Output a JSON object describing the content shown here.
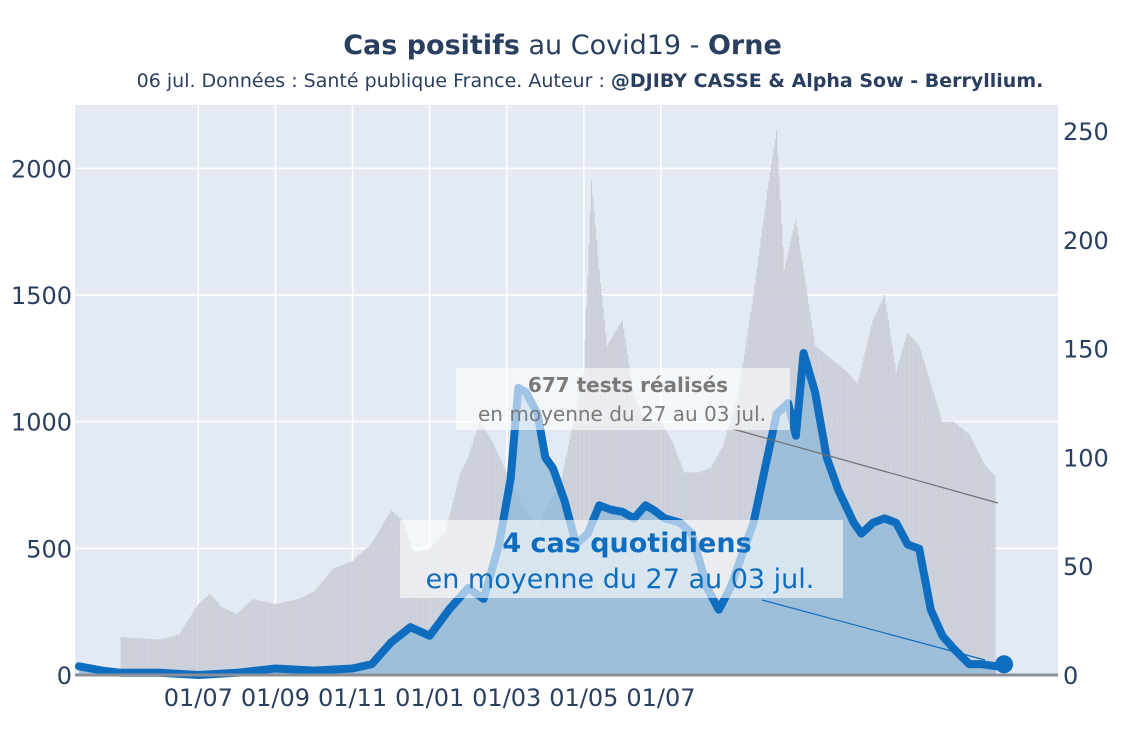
{
  "title": {
    "bold_start": "Cas positifs",
    "normal_middle": " au Covid19 - ",
    "bold_end": "Orne"
  },
  "subtitle": {
    "normal": "06 jul. Données : Santé publique France. Auteur : ",
    "bold": "@DJIBY CASSE & Alpha Sow - Berryllium."
  },
  "colors": {
    "cases": "#0f6dbf",
    "cases_fill": "#8db8da",
    "tests": "#c9ced8",
    "plot_bg": "#e4eaf3",
    "grid": "#ffffff"
  },
  "annotations": {
    "tests": {
      "line1": "677 tests réalisés",
      "line2": "en moyenne du 27 au 03 jul."
    },
    "cases": {
      "line1": "4 cas quotidiens",
      "line2": "en moyenne du 27 au 03 jul."
    }
  },
  "chart_data": {
    "type": "line",
    "title": "Cas positifs au Covid19 - Orne",
    "x_ticks": [
      "01/07",
      "01/09",
      "01/11",
      "01/01",
      "01/03",
      "01/05",
      "01/07"
    ],
    "y_left": {
      "ticks": [
        "0",
        "500",
        "1000",
        "1500",
        "2000"
      ],
      "range": [
        0,
        2250
      ],
      "series_name": "tests"
    },
    "y_right": {
      "ticks": [
        "0",
        "50",
        "100",
        "150",
        "200",
        "250"
      ],
      "range": [
        0,
        262
      ],
      "series_name": "cas"
    },
    "x_months_range": [
      -1.2,
      24.3
    ],
    "grid": true,
    "tests_points": [
      [
        0,
        150
      ],
      [
        1,
        140
      ],
      [
        1.5,
        160
      ],
      [
        2,
        280
      ],
      [
        2.3,
        320
      ],
      [
        2.6,
        270
      ],
      [
        3,
        240
      ],
      [
        3.4,
        300
      ],
      [
        4,
        280
      ],
      [
        4.6,
        300
      ],
      [
        5,
        330
      ],
      [
        5.5,
        420
      ],
      [
        6,
        450
      ],
      [
        6.5,
        520
      ],
      [
        7,
        650
      ],
      [
        7.3,
        610
      ],
      [
        7.6,
        480
      ],
      [
        8,
        500
      ],
      [
        8.4,
        560
      ],
      [
        8.8,
        800
      ],
      [
        9,
        860
      ],
      [
        9.3,
        1000
      ],
      [
        9.6,
        930
      ],
      [
        10,
        800
      ],
      [
        10.5,
        640
      ],
      [
        10.8,
        580
      ],
      [
        11,
        650
      ],
      [
        11.4,
        760
      ],
      [
        11.8,
        1050
      ],
      [
        12,
        1200
      ],
      [
        12.2,
        1950
      ],
      [
        12.4,
        1600
      ],
      [
        12.6,
        1300
      ],
      [
        13,
        1400
      ],
      [
        13.3,
        1100
      ],
      [
        13.6,
        1000
      ],
      [
        14,
        1000
      ],
      [
        14.3,
        920
      ],
      [
        14.6,
        800
      ],
      [
        15,
        800
      ],
      [
        15.3,
        820
      ],
      [
        15.6,
        900
      ],
      [
        16,
        1100
      ],
      [
        16.4,
        1500
      ],
      [
        16.8,
        1950
      ],
      [
        17,
        2150
      ],
      [
        17.2,
        1600
      ],
      [
        17.5,
        1800
      ],
      [
        17.8,
        1500
      ],
      [
        18,
        1300
      ],
      [
        18.4,
        1250
      ],
      [
        18.8,
        1200
      ],
      [
        19.1,
        1150
      ],
      [
        19.5,
        1400
      ],
      [
        19.8,
        1500
      ],
      [
        20.1,
        1200
      ],
      [
        20.4,
        1350
      ],
      [
        20.7,
        1300
      ],
      [
        21,
        1150
      ],
      [
        21.3,
        1000
      ],
      [
        21.6,
        1000
      ],
      [
        22,
        950
      ],
      [
        22.4,
        830
      ],
      [
        22.7,
        780
      ]
    ],
    "cases_points": [
      [
        -1.1,
        4
      ],
      [
        -0.5,
        2
      ],
      [
        0,
        1
      ],
      [
        1,
        1
      ],
      [
        2,
        0
      ],
      [
        3,
        1
      ],
      [
        4,
        3
      ],
      [
        5,
        2
      ],
      [
        6,
        3
      ],
      [
        6.5,
        5
      ],
      [
        7,
        15
      ],
      [
        7.5,
        22
      ],
      [
        8,
        18
      ],
      [
        8.5,
        30
      ],
      [
        9,
        40
      ],
      [
        9.4,
        35
      ],
      [
        9.8,
        60
      ],
      [
        10.1,
        90
      ],
      [
        10.3,
        132
      ],
      [
        10.5,
        130
      ],
      [
        10.8,
        120
      ],
      [
        11,
        100
      ],
      [
        11.2,
        95
      ],
      [
        11.5,
        80
      ],
      [
        11.8,
        60
      ],
      [
        12.1,
        65
      ],
      [
        12.4,
        78
      ],
      [
        12.7,
        76
      ],
      [
        13,
        75
      ],
      [
        13.3,
        72
      ],
      [
        13.6,
        78
      ],
      [
        13.8,
        76
      ],
      [
        14.1,
        72
      ],
      [
        14.5,
        70
      ],
      [
        14.8,
        65
      ],
      [
        15.2,
        40
      ],
      [
        15.5,
        30
      ],
      [
        15.8,
        40
      ],
      [
        16.1,
        55
      ],
      [
        16.4,
        70
      ],
      [
        16.7,
        95
      ],
      [
        17,
        120
      ],
      [
        17.3,
        125
      ],
      [
        17.5,
        110
      ],
      [
        17.7,
        148
      ],
      [
        18,
        130
      ],
      [
        18.3,
        100
      ],
      [
        18.6,
        85
      ],
      [
        19,
        70
      ],
      [
        19.2,
        65
      ],
      [
        19.5,
        70
      ],
      [
        19.8,
        72
      ],
      [
        20.1,
        70
      ],
      [
        20.4,
        60
      ],
      [
        20.7,
        58
      ],
      [
        21,
        30
      ],
      [
        21.3,
        18
      ],
      [
        21.6,
        12
      ],
      [
        22,
        5
      ],
      [
        22.3,
        5
      ],
      [
        22.7,
        4
      ]
    ]
  }
}
